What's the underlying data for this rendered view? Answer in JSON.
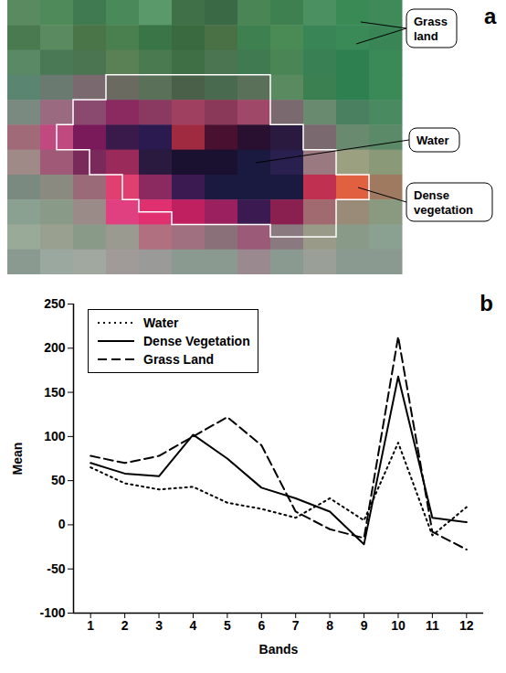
{
  "chart_data": [
    {
      "type": "image",
      "panel": "a",
      "annotations": [
        "Grass land",
        "Water",
        "Dense vegetation"
      ],
      "cells": [
        [
          "#5a8a60",
          "#4f8a5a",
          "#3f7a50",
          "#4a8a5a",
          "#5a9a6a",
          "#3f7048",
          "#3a6a45",
          "#4a8555",
          "#3f8050",
          "#4a9060",
          "#3a8a55",
          "#3f8a58"
        ],
        [
          "#4a7a50",
          "#5a8a60",
          "#4a7548",
          "#4a8050",
          "#3a7548",
          "#3a6a40",
          "#4a7045",
          "#3f8050",
          "#4a8a55",
          "#3a8555",
          "#3a8a58",
          "#3a8555"
        ],
        [
          "#5a8a65",
          "#4a7a55",
          "#4a7550",
          "#5a8055",
          "#4a7a50",
          "#3f7045",
          "#4a7550",
          "#3f7a50",
          "#4a8555",
          "#3a8055",
          "#2f8050",
          "#3a8a58"
        ],
        [
          "#5a8570",
          "#6a7a70",
          "#7a6a70",
          "#6a6a60",
          "#5a7058",
          "#4a6048",
          "#4a6a50",
          "#5a7058",
          "#5a8a60",
          "#3a8050",
          "#2f8050",
          "#3a8a58"
        ],
        [
          "#7a8a80",
          "#9a6a80",
          "#8a4a70",
          "#8a2a60",
          "#8a3a60",
          "#a04060",
          "#8a3a58",
          "#a04868",
          "#7a6a70",
          "#6a8a70",
          "#4a8060",
          "#4a8a60"
        ],
        [
          "#a06a78",
          "#c04a80",
          "#7a1a5a",
          "#3a1a4a",
          "#2a1a50",
          "#a02a40",
          "#4a1030",
          "#2a1030",
          "#2a1a40",
          "#7a6a70",
          "#6a8a70",
          "#5a8a68"
        ],
        [
          "#a08a88",
          "#a05a78",
          "#7a2a5a",
          "#9a2a5a",
          "#2a1a40",
          "#1a1030",
          "#1a1030",
          "#1a1a40",
          "#2a2050",
          "#9a7a80",
          "#9aa080",
          "#8a9a78"
        ],
        [
          "#7a8a80",
          "#8a8a80",
          "#9a6a78",
          "#e04070",
          "#8a2a60",
          "#3a1a50",
          "#1a1a40",
          "#1a1a40",
          "#1a1a40",
          "#c03050",
          "#e06040",
          "#a07a60"
        ],
        [
          "#8aa090",
          "#8a9a88",
          "#9a8a88",
          "#e04080",
          "#e03070",
          "#c02060",
          "#9a2060",
          "#3a1a50",
          "#8a2050",
          "#a06a70",
          "#9a8a78",
          "#8a9a80"
        ],
        [
          "#9aaa98",
          "#9aa090",
          "#8a9a88",
          "#9a9a90",
          "#b07080",
          "#a07080",
          "#8a7078",
          "#9a5a78",
          "#8a7a80",
          "#9a9a88",
          "#8a9a88",
          "#8aa090"
        ],
        [
          "#8a9a90",
          "#9aa8a0",
          "#a0a8a0",
          "#a09a98",
          "#9a9a98",
          "#8a9a90",
          "#8a9a90",
          "#9a8a90",
          "#8a9a90",
          "#9aa098",
          "#8a9a90",
          "#8a9a90"
        ]
      ]
    },
    {
      "type": "line",
      "panel": "b",
      "x_label": "Bands",
      "y_label": "Mean",
      "x": [
        1,
        2,
        3,
        4,
        5,
        6,
        7,
        8,
        9,
        10,
        11,
        12
      ],
      "xlim": [
        0.5,
        12.5
      ],
      "xticks": [
        1,
        2,
        3,
        4,
        5,
        6,
        7,
        8,
        9,
        10,
        11,
        12
      ],
      "ylim": [
        -100,
        250
      ],
      "yticks": [
        -100,
        -50,
        0,
        50,
        100,
        150,
        200,
        250
      ],
      "grid": false,
      "legend": "top-left",
      "series": [
        {
          "name": "Water",
          "color": "#000000",
          "line_style": "dotted",
          "values": [
            65,
            47,
            40,
            43,
            25,
            18,
            8,
            30,
            5,
            93,
            -12,
            20
          ]
        },
        {
          "name": "Dense Vegetation",
          "color": "#000000",
          "line_style": "solid",
          "values": [
            70,
            58,
            55,
            102,
            75,
            42,
            30,
            15,
            -22,
            168,
            8,
            3
          ]
        },
        {
          "name": "Grass Land",
          "color": "#000000",
          "line_style": "dashed",
          "values": [
            78,
            70,
            78,
            100,
            122,
            90,
            15,
            -5,
            -15,
            213,
            -8,
            -28
          ]
        }
      ]
    }
  ]
}
